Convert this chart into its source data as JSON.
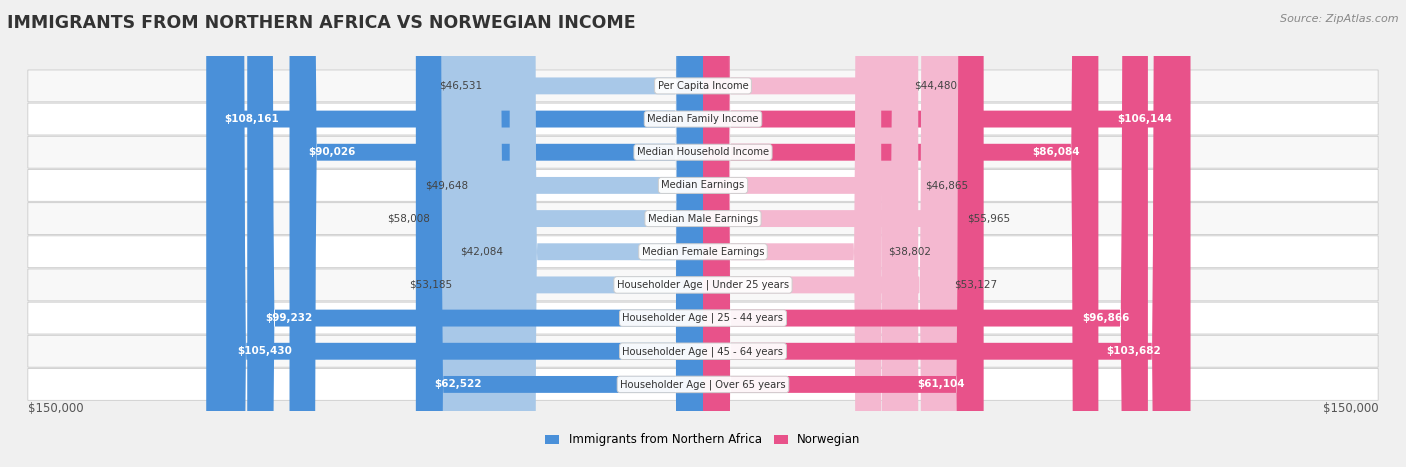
{
  "title": "IMMIGRANTS FROM NORTHERN AFRICA VS NORWEGIAN INCOME",
  "source": "Source: ZipAtlas.com",
  "categories": [
    "Per Capita Income",
    "Median Family Income",
    "Median Household Income",
    "Median Earnings",
    "Median Male Earnings",
    "Median Female Earnings",
    "Householder Age | Under 25 years",
    "Householder Age | 25 - 44 years",
    "Householder Age | 45 - 64 years",
    "Householder Age | Over 65 years"
  ],
  "immigrants": [
    46531,
    108161,
    90026,
    49648,
    58008,
    42084,
    53185,
    99232,
    105430,
    62522
  ],
  "norwegian": [
    44480,
    106144,
    86084,
    46865,
    55965,
    38802,
    53127,
    96866,
    103682,
    61104
  ],
  "max_val": 150000,
  "immigrant_color_dark": "#4a90d9",
  "immigrant_color_light": "#a8c8e8",
  "norwegian_color_dark": "#e8528a",
  "norwegian_color_light": "#f4b8d0",
  "label_threshold": 60000,
  "bar_height": 0.58,
  "background_color": "#f0f0f0",
  "row_bg_even": "#f8f8f8",
  "row_bg_odd": "#ffffff",
  "legend_immigrant_label": "Immigrants from Northern Africa",
  "legend_norwegian_label": "Norwegian",
  "xlabel_left": "$150,000",
  "xlabel_right": "$150,000"
}
